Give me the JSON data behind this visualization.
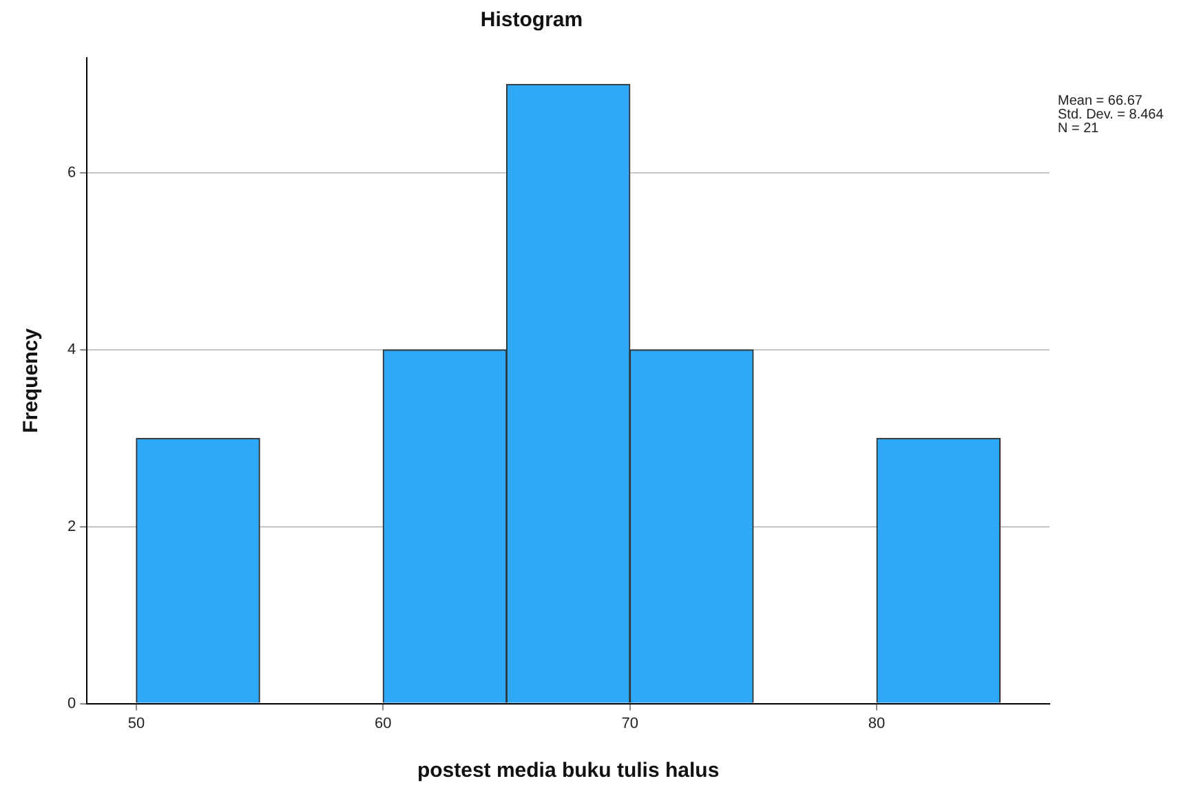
{
  "chart_data": {
    "type": "histogram",
    "title": "Histogram",
    "xlabel": "postest media buku tulis halus",
    "ylabel": "Frequency",
    "bins": [
      50,
      55,
      60,
      65,
      70,
      75,
      80,
      85
    ],
    "values": [
      3,
      0,
      4,
      7,
      4,
      0,
      3
    ],
    "color": "#2ea8f7",
    "xlim": [
      48,
      87
    ],
    "xticks": [
      50,
      60,
      70,
      80
    ],
    "ylim": [
      0,
      7.3
    ],
    "yticks": [
      0,
      2,
      4,
      6
    ],
    "grid": "y",
    "legend": false,
    "annotations": [
      "Mean = 66.67",
      "Std. Dev. = 8.464",
      "N = 21"
    ]
  }
}
